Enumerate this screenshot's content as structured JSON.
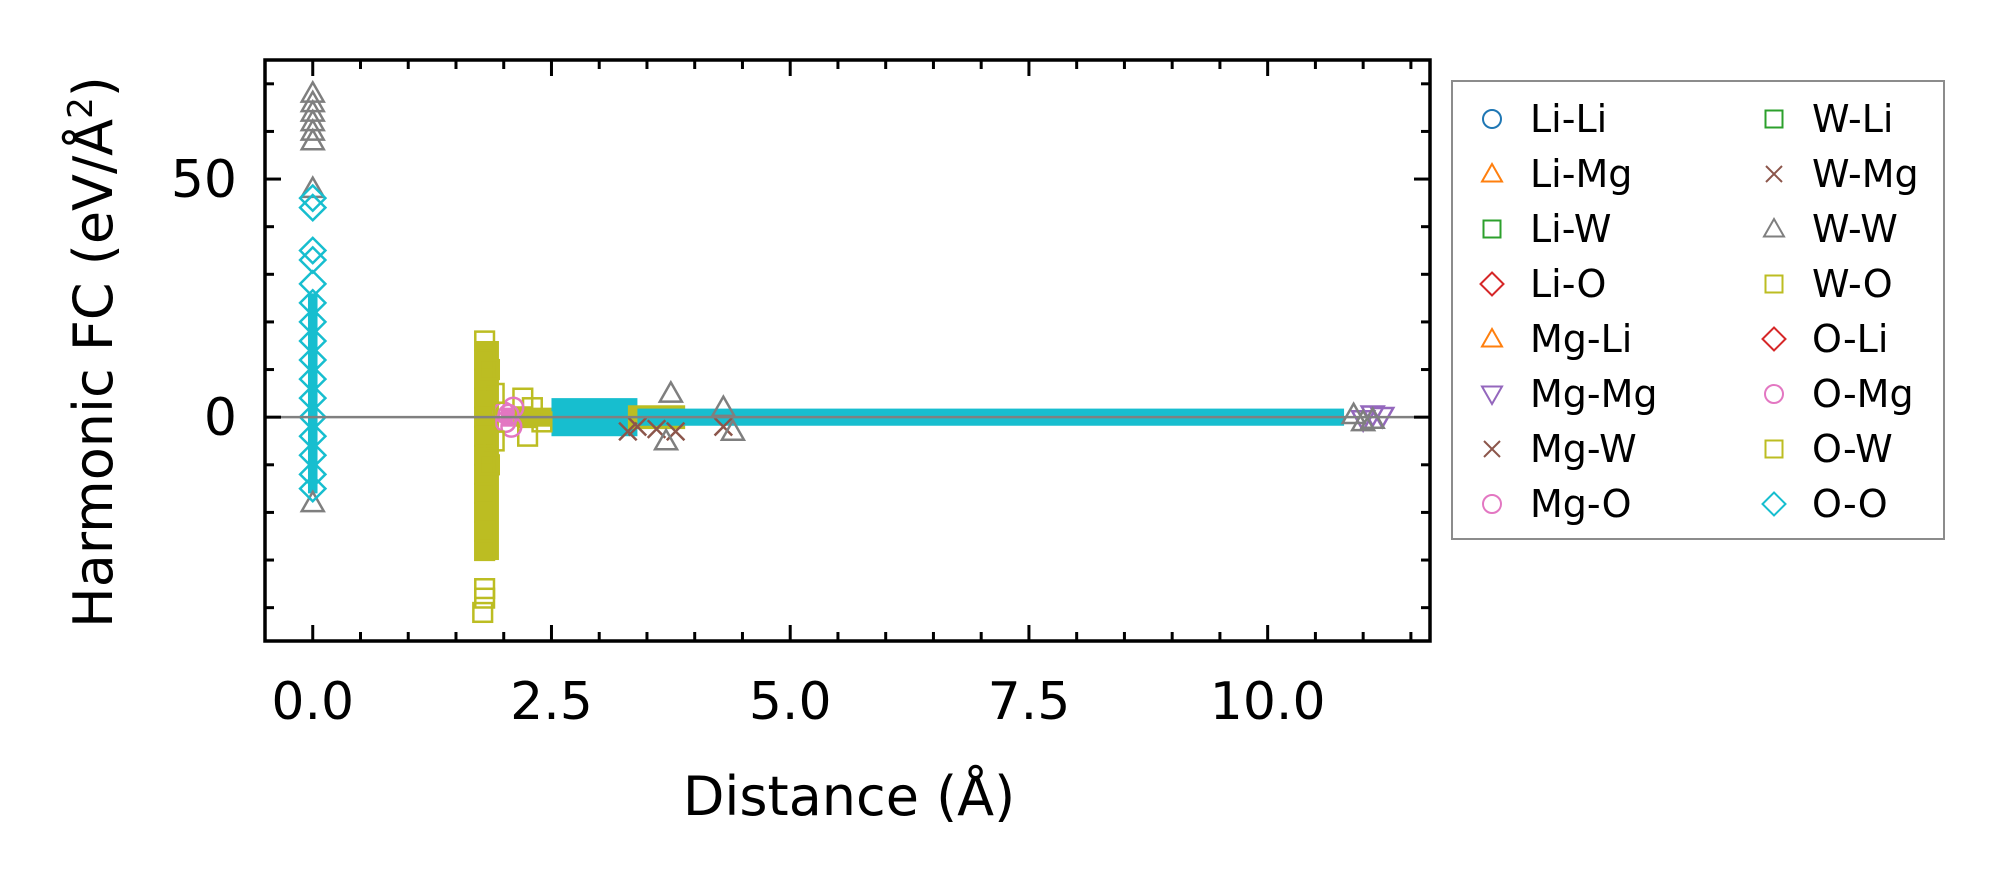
{
  "chart_data": {
    "type": "scatter",
    "title": "",
    "xlabel": "Distance (Å)",
    "ylabel_main": "Harmonic FC (eV/Å",
    "ylabel_sup": "2",
    "ylabel_close": ")",
    "xlim": [
      -0.5,
      11.7
    ],
    "ylim": [
      -47,
      75
    ],
    "xticks": [
      0.0,
      2.5,
      5.0,
      7.5,
      10.0
    ],
    "xtick_labels": [
      "0.0",
      "2.5",
      "5.0",
      "7.5",
      "10.0"
    ],
    "yticks": [
      0,
      50
    ],
    "ytick_labels": [
      "0",
      "50"
    ],
    "zero_line": true,
    "legend_position": "outside-right",
    "series": [
      {
        "name": "Li-Li",
        "marker": "circle",
        "color": "#1f77b4",
        "points": []
      },
      {
        "name": "Li-Mg",
        "marker": "triangle-up",
        "color": "#ff7f0e",
        "points": []
      },
      {
        "name": "Li-W",
        "marker": "square",
        "color": "#2ca02c",
        "points": []
      },
      {
        "name": "Li-O",
        "marker": "diamond",
        "color": "#d62728",
        "points": []
      },
      {
        "name": "Mg-Li",
        "marker": "triangle-up",
        "color": "#ff7f0e",
        "points": []
      },
      {
        "name": "Mg-Mg",
        "marker": "triangle-down",
        "color": "#9467bd",
        "points": [
          [
            11.1,
            0.5
          ],
          [
            11.2,
            0.2
          ],
          [
            11.0,
            -0.5
          ]
        ]
      },
      {
        "name": "Mg-W",
        "marker": "x",
        "color": "#8c564b",
        "points": [
          [
            3.3,
            -3
          ],
          [
            3.4,
            -2
          ],
          [
            3.6,
            -2.5
          ],
          [
            3.8,
            -3
          ],
          [
            4.3,
            -2
          ]
        ]
      },
      {
        "name": "Mg-O",
        "marker": "circle",
        "color": "#e377c2",
        "points": []
      },
      {
        "name": "W-Li",
        "marker": "square",
        "color": "#2ca02c",
        "points": []
      },
      {
        "name": "W-Mg",
        "marker": "x",
        "color": "#8c564b",
        "points": []
      },
      {
        "name": "W-W",
        "marker": "triangle-up",
        "color": "#7f7f7f",
        "points": [
          [
            0,
            68
          ],
          [
            0,
            66
          ],
          [
            0,
            64
          ],
          [
            0,
            62
          ],
          [
            0,
            60
          ],
          [
            0,
            58
          ],
          [
            0,
            48
          ],
          [
            0,
            -18
          ],
          [
            3.75,
            5
          ],
          [
            3.7,
            -5
          ],
          [
            4.3,
            2
          ],
          [
            4.4,
            -3
          ],
          [
            11.0,
            -1
          ],
          [
            11.1,
            -0.5
          ],
          [
            10.9,
            0.5
          ]
        ]
      },
      {
        "name": "W-O",
        "marker": "square",
        "color": "#bcbd22",
        "points": [
          [
            2.2,
            4
          ],
          [
            2.25,
            -4
          ],
          [
            2.3,
            2
          ],
          [
            2.4,
            -1
          ]
        ]
      },
      {
        "name": "O-Li",
        "marker": "diamond",
        "color": "#d62728",
        "points": []
      },
      {
        "name": "O-Mg",
        "marker": "circle",
        "color": "#e377c2",
        "points": [
          [
            2.0,
            1
          ],
          [
            2.02,
            -1
          ],
          [
            2.05,
            0.5
          ],
          [
            2.08,
            -2
          ],
          [
            2.1,
            2
          ]
        ]
      },
      {
        "name": "O-W",
        "marker": "square",
        "color": "#bcbd22",
        "points": [
          [
            1.8,
            16
          ],
          [
            1.8,
            12
          ],
          [
            1.8,
            8
          ],
          [
            1.8,
            4
          ],
          [
            1.8,
            0
          ],
          [
            1.8,
            -4
          ],
          [
            1.8,
            -8
          ],
          [
            1.8,
            -12
          ],
          [
            1.8,
            -16
          ],
          [
            1.8,
            -20
          ],
          [
            1.8,
            -24
          ],
          [
            1.8,
            -28
          ],
          [
            1.8,
            -36
          ],
          [
            1.8,
            -38
          ],
          [
            1.78,
            -41
          ],
          [
            1.85,
            10
          ],
          [
            1.85,
            -10
          ],
          [
            1.9,
            5
          ],
          [
            1.9,
            -5
          ]
        ]
      },
      {
        "name": "O-O",
        "marker": "diamond",
        "color": "#17becf",
        "points": [
          [
            0,
            46
          ],
          [
            0,
            44
          ],
          [
            0,
            35
          ],
          [
            0,
            33
          ],
          [
            0,
            28
          ],
          [
            0,
            24
          ],
          [
            0,
            20
          ],
          [
            0,
            16
          ],
          [
            0,
            12
          ],
          [
            0,
            8
          ],
          [
            0,
            4
          ],
          [
            0,
            0
          ],
          [
            0,
            -4
          ],
          [
            0,
            -8
          ],
          [
            0,
            -12
          ],
          [
            0,
            -15
          ]
        ]
      }
    ],
    "bands": [
      {
        "series": "O-W",
        "x": [
          1.7,
          1.95
        ],
        "y": [
          -30,
          16
        ],
        "color": "#bcbd22"
      },
      {
        "series": "O-O",
        "x": [
          -0.05,
          0.05
        ],
        "y": [
          -16,
          26
        ],
        "color": "#17becf"
      },
      {
        "series": "O-Mg",
        "x": [
          1.97,
          2.1
        ],
        "y": [
          -2,
          2
        ],
        "color": "#e377c2"
      },
      {
        "series": "O-W",
        "x": [
          2.1,
          2.6
        ],
        "y": [
          -2,
          2
        ],
        "color": "#bcbd22"
      },
      {
        "series": "O-O",
        "x": [
          2.5,
          3.4
        ],
        "y": [
          -4,
          4
        ],
        "color": "#17becf"
      },
      {
        "series": "O-W",
        "x": [
          3.3,
          3.9
        ],
        "y": [
          -2.5,
          2.5
        ],
        "color": "#bcbd22"
      },
      {
        "series": "O-O",
        "x": [
          3.4,
          10.8
        ],
        "y": [
          -1.8,
          1.8
        ],
        "color": "#17becf"
      }
    ]
  }
}
